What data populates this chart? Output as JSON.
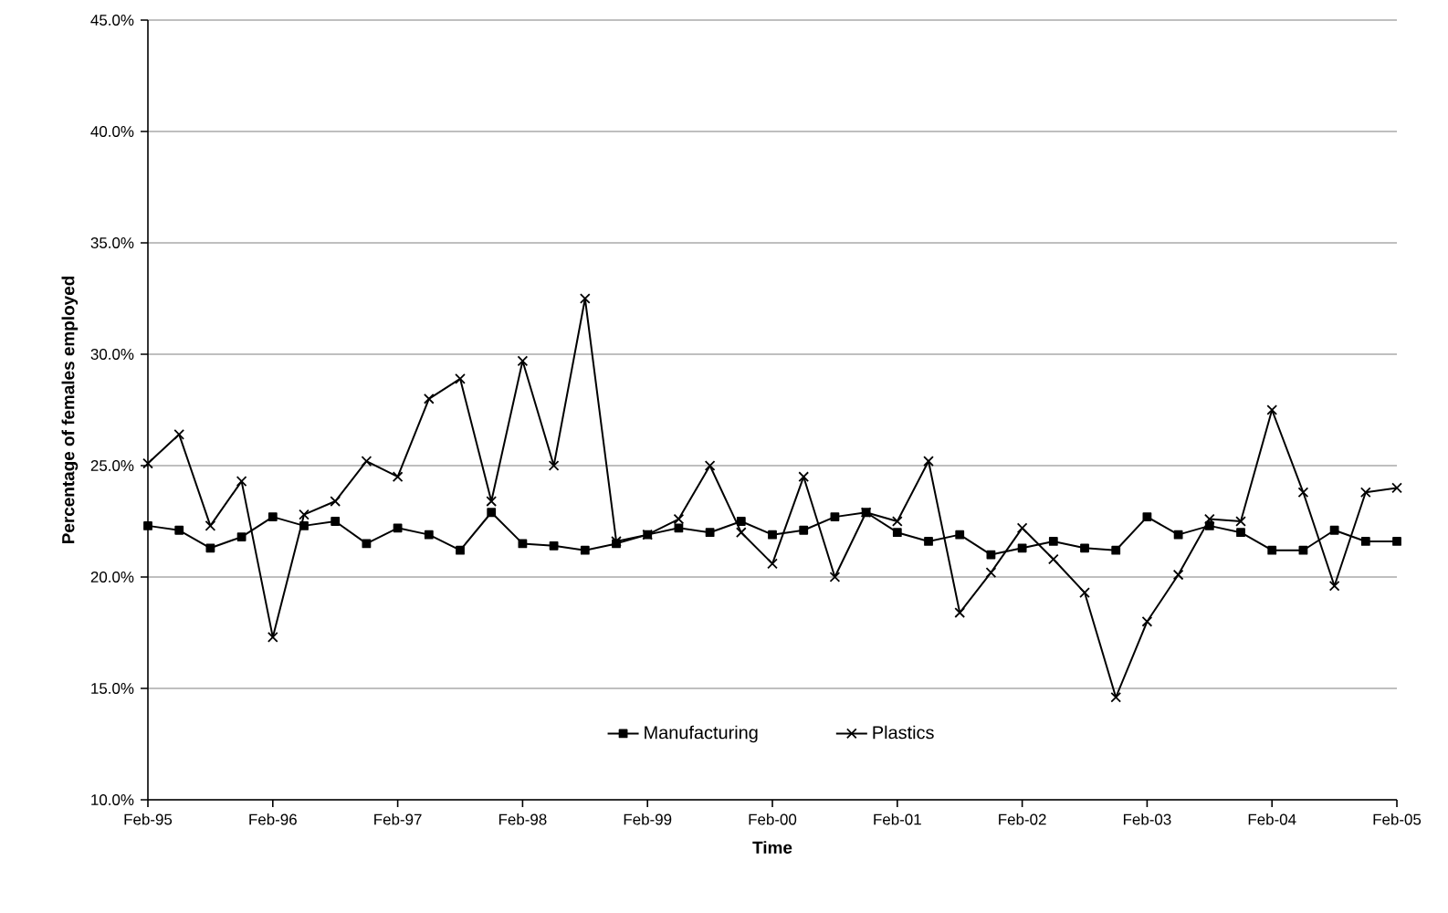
{
  "chart_data": {
    "type": "line",
    "xlabel": "Time",
    "ylabel": "Percentage of females employed",
    "x": [
      "1995-02",
      "1995-05",
      "1995-08",
      "1995-11",
      "1996-02",
      "1996-05",
      "1996-08",
      "1996-11",
      "1997-02",
      "1997-05",
      "1997-08",
      "1997-11",
      "1998-02",
      "1998-05",
      "1998-08",
      "1998-11",
      "1999-02",
      "1999-05",
      "1999-08",
      "1999-11",
      "2000-02",
      "2000-05",
      "2000-08",
      "2000-11",
      "2001-02",
      "2001-05",
      "2001-08",
      "2001-11",
      "2002-02",
      "2002-05",
      "2002-08",
      "2002-11",
      "2003-02",
      "2003-05",
      "2003-08",
      "2003-11",
      "2004-02",
      "2004-05",
      "2004-08",
      "2004-11",
      "2005-02"
    ],
    "series": [
      {
        "name": "Manufacturing",
        "color": "#000000",
        "marker": "square",
        "values": [
          22.3,
          22.1,
          21.3,
          21.8,
          22.7,
          22.3,
          22.5,
          21.5,
          22.2,
          21.9,
          21.2,
          22.9,
          21.5,
          21.4,
          21.2,
          21.5,
          21.9,
          22.2,
          22.0,
          22.5,
          21.9,
          22.1,
          22.7,
          22.9,
          22.0,
          21.6,
          21.9,
          21.0,
          21.3,
          21.6,
          21.3,
          21.2,
          22.7,
          21.9,
          22.3,
          22.0,
          21.2,
          21.2,
          22.1,
          21.6,
          21.6
        ]
      },
      {
        "name": "Plastics",
        "color": "#000000",
        "marker": "cross",
        "values": [
          25.1,
          26.4,
          22.3,
          24.3,
          17.3,
          22.8,
          23.4,
          25.2,
          24.5,
          28.0,
          28.9,
          23.4,
          29.7,
          25.0,
          32.5,
          21.6,
          21.9,
          22.6,
          25.0,
          22.0,
          20.6,
          24.5,
          20.0,
          22.9,
          22.5,
          25.2,
          18.4,
          20.2,
          22.2,
          20.8,
          19.3,
          14.6,
          18.0,
          20.1,
          22.6,
          22.5,
          27.5,
          23.8,
          19.6,
          23.8,
          24.0
        ]
      }
    ],
    "xlim": [
      "1995-02",
      "2005-02"
    ],
    "xticks": [
      {
        "value": "1995-02",
        "label": "Feb-95"
      },
      {
        "value": "1996-02",
        "label": "Feb-96"
      },
      {
        "value": "1997-02",
        "label": "Feb-97"
      },
      {
        "value": "1998-02",
        "label": "Feb-98"
      },
      {
        "value": "1999-02",
        "label": "Feb-99"
      },
      {
        "value": "2000-02",
        "label": "Feb-00"
      },
      {
        "value": "2001-02",
        "label": "Feb-01"
      },
      {
        "value": "2002-02",
        "label": "Feb-02"
      },
      {
        "value": "2003-02",
        "label": "Feb-03"
      },
      {
        "value": "2004-02",
        "label": "Feb-04"
      },
      {
        "value": "2005-02",
        "label": "Feb-05"
      }
    ],
    "ylim": [
      10,
      45
    ],
    "yticks": [
      {
        "value": 10,
        "label": "10.0%"
      },
      {
        "value": 15,
        "label": "15.0%"
      },
      {
        "value": 20,
        "label": "20.0%"
      },
      {
        "value": 25,
        "label": "25.0%"
      },
      {
        "value": 30,
        "label": "30.0%"
      },
      {
        "value": 35,
        "label": "35.0%"
      },
      {
        "value": 40,
        "label": "40.0%"
      },
      {
        "value": 45,
        "label": "45.0%"
      }
    ],
    "grid": "y",
    "legend": "bottom",
    "line_style": "solid"
  }
}
